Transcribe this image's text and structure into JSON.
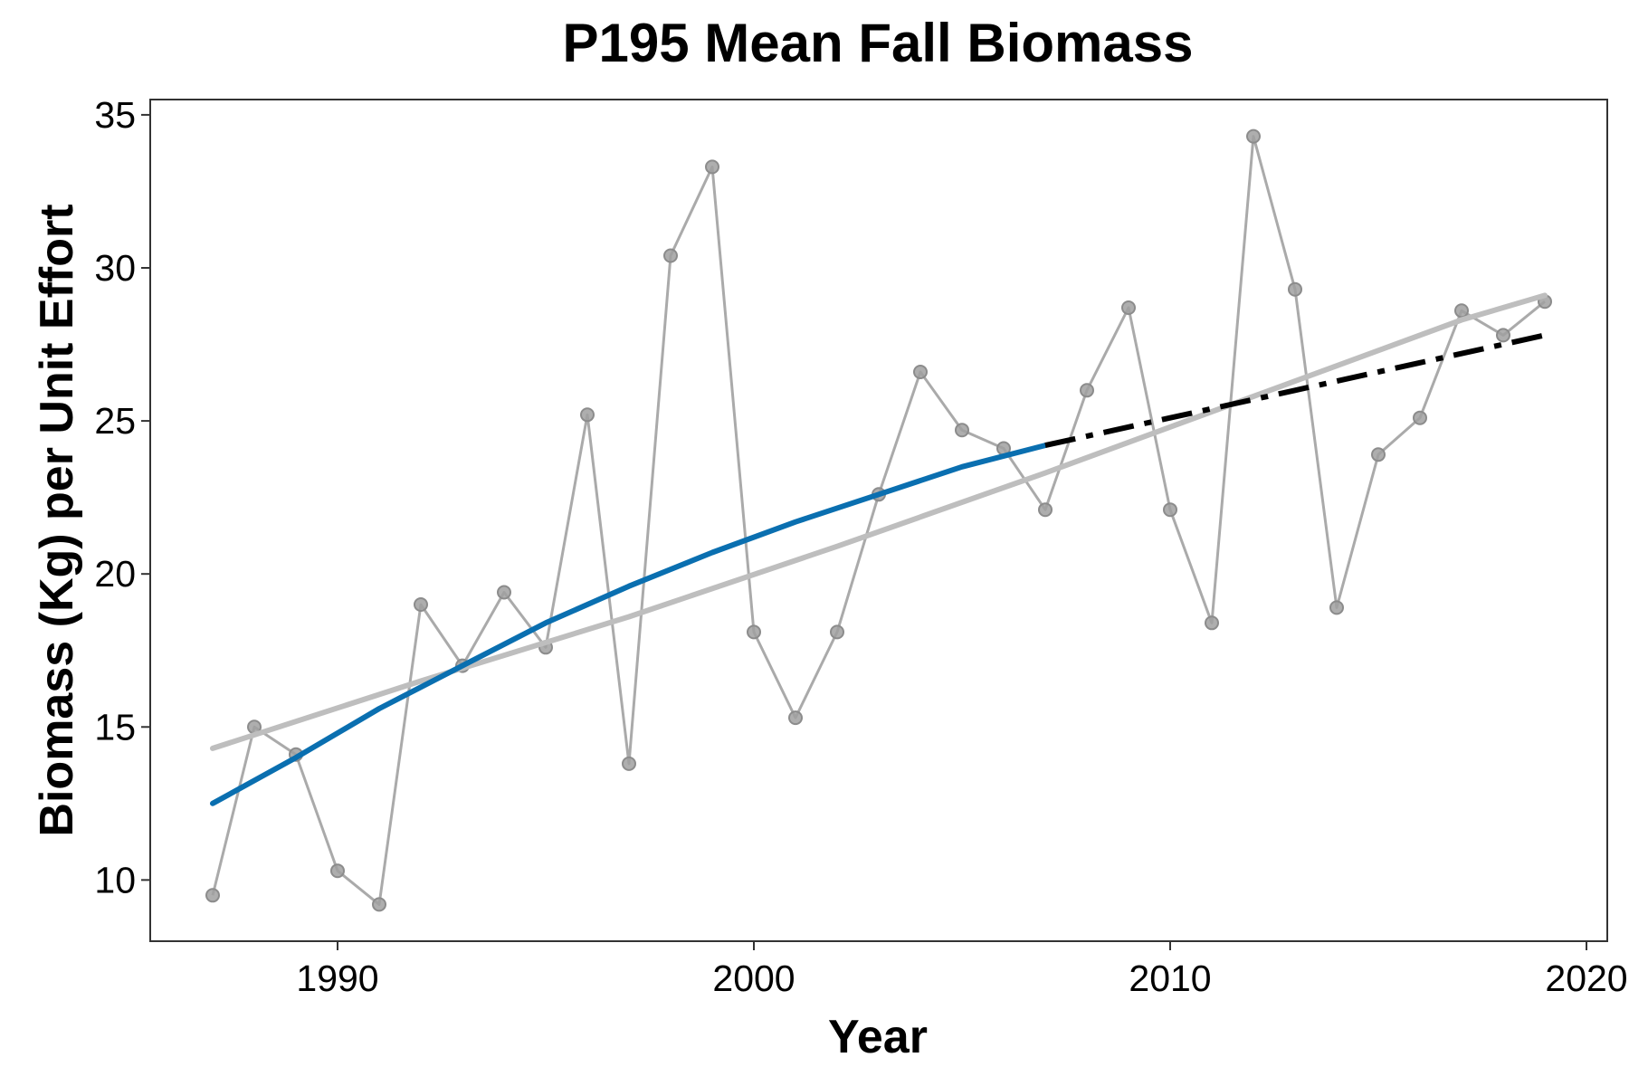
{
  "chart_data": {
    "type": "line",
    "title": "P195 Mean Fall Biomass",
    "xlabel": "Year",
    "ylabel": "Biomass (Kg) per Unit Effort",
    "xlim": [
      1985.5,
      2020.5
    ],
    "ylim": [
      8,
      35.5
    ],
    "x_ticks": [
      1990,
      2000,
      2010,
      2020
    ],
    "y_ticks": [
      10,
      15,
      20,
      25,
      30,
      35
    ],
    "x_tick_labels": [
      "1990",
      "2000",
      "2010",
      "2020"
    ],
    "y_tick_labels": [
      "10",
      "15",
      "20",
      "25",
      "30",
      "35"
    ],
    "grid": false,
    "legend": "none",
    "colors": {
      "observed": "#aaaaaa",
      "linear_trend": "#bebebe",
      "fitted_curve": "#0a6fb0",
      "projection": "#000000"
    },
    "series": [
      {
        "style": "line+points",
        "color": "#aaaaaa",
        "x": [
          1987,
          1988,
          1989,
          1990,
          1991,
          1992,
          1993,
          1994,
          1995,
          1996,
          1997,
          1998,
          1999,
          2000,
          2001,
          2002,
          2003,
          2004,
          2005,
          2006,
          2007,
          2008,
          2009,
          2010,
          2011,
          2012,
          2013,
          2014,
          2015,
          2016,
          2017,
          2018,
          2019
        ],
        "y": [
          9.5,
          15.0,
          14.1,
          10.3,
          9.2,
          19.0,
          17.0,
          19.4,
          17.6,
          25.2,
          13.8,
          30.4,
          33.3,
          18.1,
          15.3,
          18.1,
          22.6,
          26.6,
          24.7,
          24.1,
          22.1,
          26.0,
          28.7,
          22.1,
          18.4,
          34.3,
          29.3,
          18.9,
          23.9,
          25.1,
          28.6,
          27.8,
          28.9
        ]
      },
      {
        "style": "line",
        "color": "#bebebe",
        "x": [
          1987,
          1992,
          1997,
          2002,
          2007,
          2012,
          2017,
          2019
        ],
        "y": [
          14.3,
          16.5,
          18.6,
          20.9,
          23.3,
          25.8,
          28.3,
          29.1
        ]
      },
      {
        "style": "line",
        "color": "#0a6fb0",
        "x": [
          1987,
          1989,
          1991,
          1993,
          1995,
          1997,
          1999,
          2001,
          2003,
          2005,
          2007
        ],
        "y": [
          12.5,
          14.0,
          15.6,
          17.0,
          18.4,
          19.6,
          20.7,
          21.7,
          22.6,
          23.5,
          24.2
        ]
      },
      {
        "style": "dashdot",
        "color": "#000000",
        "x": [
          2007,
          2010,
          2013,
          2016,
          2019
        ],
        "y": [
          24.2,
          25.1,
          26.0,
          26.9,
          27.8
        ]
      }
    ]
  }
}
